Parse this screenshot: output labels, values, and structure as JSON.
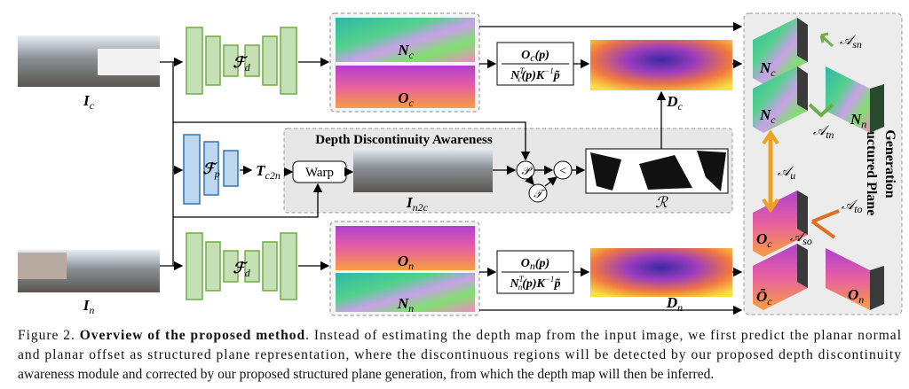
{
  "inputs": {
    "top": {
      "base": "I",
      "sub": "c"
    },
    "bottom": {
      "base": "I",
      "sub": "n"
    }
  },
  "encoders": {
    "top": {
      "base": "ℱ",
      "sub": "d"
    },
    "pose": {
      "base": "ℱ",
      "sub": "p"
    },
    "bottom": {
      "base": "ℱ",
      "sub": "d"
    }
  },
  "maps": {
    "top_normal": {
      "base": "N",
      "sub": "c"
    },
    "top_offset": {
      "base": "O",
      "sub": "c"
    },
    "bottom_offset": {
      "base": "O",
      "sub": "n"
    },
    "bottom_normal": {
      "base": "N",
      "sub": "n"
    }
  },
  "formulas": [
    {
      "num_base": "O",
      "num_sub": "c",
      "num_rest": "(p)",
      "den_base": "N",
      "den_sup": "T",
      "den_sub": "c",
      "den_mid": "(p)K",
      "den_exp": "−1",
      "den_end": "p̃"
    },
    {
      "num_base": "O",
      "num_sub": "n",
      "num_rest": "(p)",
      "den_base": "N",
      "den_sup": "T",
      "den_sub": "n",
      "den_mid": "(p)K",
      "den_exp": "−1",
      "den_end": "p̃"
    }
  ],
  "depths": {
    "top": {
      "base": "D",
      "sub": "c"
    },
    "bottom": {
      "base": "D",
      "sub": "n"
    }
  },
  "pose": {
    "base": "T",
    "sub": "c2n"
  },
  "warp": "Warp",
  "dda": {
    "title": "Depth Discontinuity Awareness",
    "warped": {
      "base": "I",
      "sub": "n2c"
    },
    "p": "𝒫",
    "t": "𝒯",
    "lt": "<",
    "r": "ℛ"
  },
  "spg": {
    "title_lines": [
      "Structured Plane",
      "Generation"
    ],
    "blocks": [
      {
        "base": "N",
        "sub": "c"
      },
      {
        "base": "N",
        "sub": "c"
      },
      {
        "base": "N",
        "sub": "n"
      },
      {
        "base": "O",
        "sub": "c"
      },
      {
        "base": "Ō",
        "sub": "c"
      },
      {
        "base": "O",
        "sub": "n"
      }
    ],
    "losses": {
      "sn": {
        "base": "𝒜",
        "sub": "sn"
      },
      "tn": {
        "base": "𝒜",
        "sub": "tn"
      },
      "u": {
        "base": "𝒜",
        "sub": "u"
      },
      "to": {
        "base": "𝒜",
        "sub": "to"
      },
      "so": {
        "base": "𝒜",
        "sub": "so"
      }
    }
  },
  "caption": {
    "label": "Figure 2.",
    "title": "Overview of the proposed method",
    "lines": [
      ". Instead of estimating the depth map from the input image, we first predict the planar normal",
      "and planar offset as structured plane representation, where the discontinuous regions will be detected by our proposed depth discontinuity",
      "awareness module and corrected by our proposed structured plane generation, from which the depth map will then be inferred."
    ]
  }
}
